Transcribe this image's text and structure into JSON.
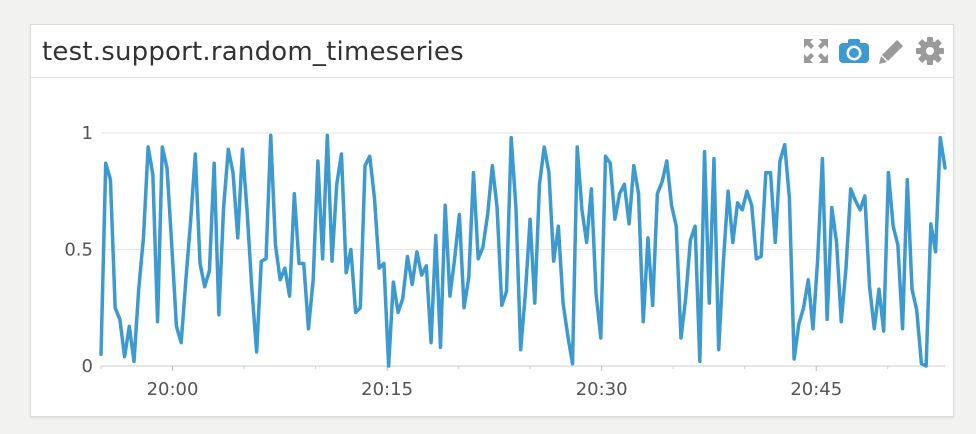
{
  "widget": {
    "title": "test.support.random_timeseries"
  },
  "toolbar": {
    "icons": [
      "expand-icon",
      "camera-icon",
      "pencil-icon",
      "gear-icon"
    ],
    "colors": {
      "default": "#9a9a9a",
      "active": "#3d9ad1"
    }
  },
  "chart_data": {
    "type": "line",
    "title": "test.support.random_timeseries",
    "color": "#3d9ad1",
    "grid": true,
    "xlabel": "",
    "ylabel": "",
    "x_ticks": [
      "20:00",
      "20:15",
      "20:30",
      "20:45"
    ],
    "y_ticks": [
      "0",
      "0.5",
      "1"
    ],
    "ylim": [
      0,
      1
    ],
    "x_start": "19:55",
    "x_end": "20:54",
    "series": [
      {
        "values": [
          0.05,
          0.87,
          0.8,
          0.25,
          0.2,
          0.04,
          0.17,
          0.02,
          0.33,
          0.55,
          0.94,
          0.82,
          0.19,
          0.94,
          0.85,
          0.52,
          0.17,
          0.1,
          0.37,
          0.62,
          0.91,
          0.44,
          0.34,
          0.41,
          0.87,
          0.22,
          0.68,
          0.93,
          0.83,
          0.55,
          0.93,
          0.66,
          0.33,
          0.06,
          0.45,
          0.46,
          0.99,
          0.52,
          0.37,
          0.42,
          0.3,
          0.74,
          0.44,
          0.44,
          0.16,
          0.37,
          0.88,
          0.46,
          0.99,
          0.45,
          0.78,
          0.91,
          0.4,
          0.5,
          0.23,
          0.25,
          0.86,
          0.9,
          0.72,
          0.42,
          0.44,
          0.0,
          0.36,
          0.23,
          0.29,
          0.47,
          0.35,
          0.49,
          0.39,
          0.43,
          0.1,
          0.56,
          0.08,
          0.69,
          0.3,
          0.46,
          0.65,
          0.25,
          0.38,
          0.83,
          0.46,
          0.51,
          0.65,
          0.86,
          0.68,
          0.26,
          0.32,
          0.98,
          0.68,
          0.07,
          0.31,
          0.63,
          0.27,
          0.78,
          0.94,
          0.83,
          0.45,
          0.6,
          0.27,
          0.13,
          0.01,
          0.94,
          0.67,
          0.53,
          0.76,
          0.31,
          0.12,
          0.9,
          0.87,
          0.63,
          0.74,
          0.78,
          0.61,
          0.86,
          0.74,
          0.19,
          0.55,
          0.26,
          0.74,
          0.79,
          0.88,
          0.69,
          0.6,
          0.12,
          0.29,
          0.54,
          0.6,
          0.02,
          0.92,
          0.27,
          0.89,
          0.07,
          0.45,
          0.75,
          0.53,
          0.7,
          0.67,
          0.75,
          0.69,
          0.46,
          0.47,
          0.83,
          0.83,
          0.53,
          0.88,
          0.95,
          0.72,
          0.03,
          0.18,
          0.25,
          0.37,
          0.16,
          0.46,
          0.89,
          0.2,
          0.68,
          0.53,
          0.19,
          0.42,
          0.76,
          0.71,
          0.67,
          0.73,
          0.34,
          0.16,
          0.33,
          0.15,
          0.83,
          0.6,
          0.52,
          0.16,
          0.8,
          0.33,
          0.24,
          0.01,
          0.0,
          0.61,
          0.49,
          0.98,
          0.85
        ]
      }
    ]
  }
}
